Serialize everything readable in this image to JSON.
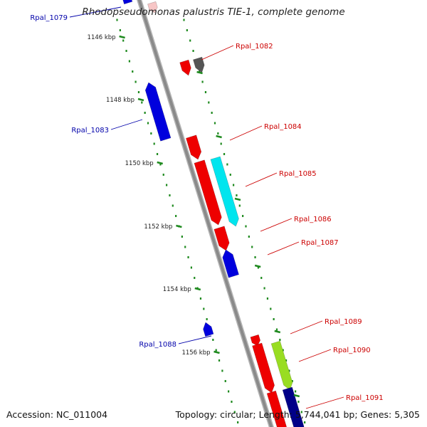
{
  "title": "Rhodopseudomonas palustris TIE-1, complete genome",
  "footer": {
    "accession": "Accession: NC_011004",
    "summary": "Topology: circular; Length: 5,744,041 bp; Genes: 5,305"
  },
  "colors": {
    "backbone": "#8a8a8a",
    "tick": "#1f8a1f",
    "forward_label": "#cc0000",
    "reverse_label": "#0000aa"
  },
  "ticks": [
    {
      "label": "1146 kbp"
    },
    {
      "label": "1148 kbp"
    },
    {
      "label": "1150 kbp"
    },
    {
      "label": "1152 kbp"
    },
    {
      "label": "1154 kbp"
    },
    {
      "label": "1156 kbp"
    }
  ],
  "genes": [
    {
      "name": "Rpal_1079",
      "strand": "reverse",
      "color": "#0000dd"
    },
    {
      "name": "",
      "strand": "forward",
      "color": "#f7c6c6"
    },
    {
      "name": "",
      "strand": "forward",
      "color": "#ee0000"
    },
    {
      "name": "Rpal_1082",
      "strand": "forward",
      "color": "#555555"
    },
    {
      "name": "Rpal_1083",
      "strand": "reverse",
      "color": "#0000dd"
    },
    {
      "name": "Rpal_1084",
      "strand": "forward",
      "color": "#ee0000"
    },
    {
      "name": "Rpal_1085",
      "strand": "forward",
      "color": "#00e5ee"
    },
    {
      "name": "Rpal_1086",
      "strand": "forward",
      "color": "#ee0000"
    },
    {
      "name": "Rpal_1087",
      "strand": "forward",
      "color": "#ee0000"
    },
    {
      "name": "Rpal_1088",
      "strand": "reverse",
      "color": "#0000dd"
    },
    {
      "name": "Rpal_1089",
      "strand": "forward",
      "color": "#ee0000"
    },
    {
      "name": "Rpal_1090",
      "strand": "forward",
      "color": "#99dd22"
    },
    {
      "name": "Rpal_1091",
      "strand": "forward",
      "color": "#000088"
    },
    {
      "name": "",
      "strand": "forward",
      "color": "#ee0000"
    }
  ]
}
